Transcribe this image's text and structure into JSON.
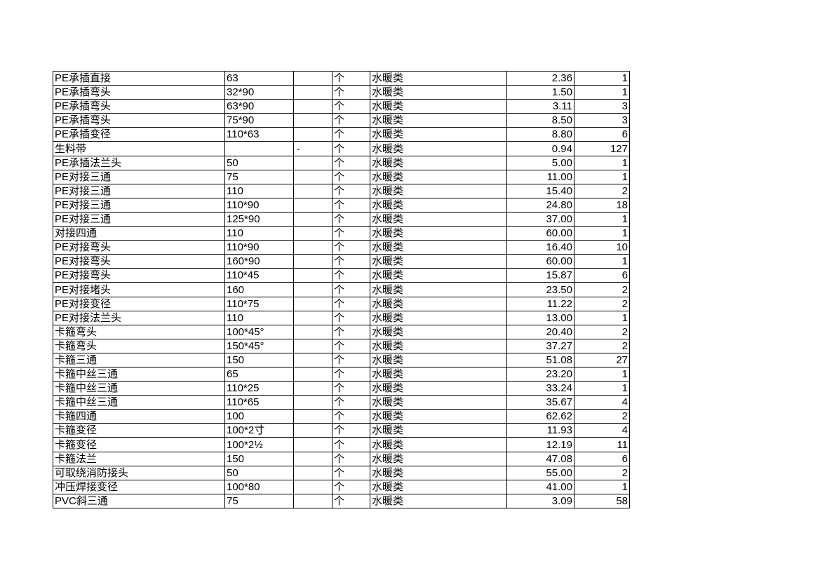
{
  "rows": [
    [
      "PE承插直接",
      "63",
      "",
      "个",
      "水暖类",
      "2.36",
      "1"
    ],
    [
      "PE承插弯头",
      "32*90",
      "",
      "个",
      "水暖类",
      "1.50",
      "1"
    ],
    [
      "PE承插弯头",
      "63*90",
      "",
      "个",
      "水暖类",
      "3.11",
      "3"
    ],
    [
      "PE承插弯头",
      "75*90",
      "",
      "个",
      "水暖类",
      "8.50",
      "3"
    ],
    [
      "PE承插变径",
      "110*63",
      "",
      "个",
      "水暖类",
      "8.80",
      "6"
    ],
    [
      "生料带",
      "",
      "-",
      "个",
      "水暖类",
      "0.94",
      "127"
    ],
    [
      "PE承插法兰头",
      "50",
      "",
      "个",
      "水暖类",
      "5.00",
      "1"
    ],
    [
      "PE对接三通",
      "75",
      "",
      "个",
      "水暖类",
      "11.00",
      "1"
    ],
    [
      "PE对接三通",
      "110",
      "",
      "个",
      "水暖类",
      "15.40",
      "2"
    ],
    [
      "PE对接三通",
      "110*90",
      "",
      "个",
      "水暖类",
      "24.80",
      "18"
    ],
    [
      "PE对接三通",
      "125*90",
      "",
      "个",
      "水暖类",
      "37.00",
      "1"
    ],
    [
      "对接四通",
      "110",
      "",
      "个",
      "水暖类",
      "60.00",
      "1"
    ],
    [
      "PE对接弯头",
      "110*90",
      "",
      "个",
      "水暖类",
      "16.40",
      "10"
    ],
    [
      "PE对接弯头",
      "160*90",
      "",
      "个",
      "水暖类",
      "60.00",
      "1"
    ],
    [
      "PE对接弯头",
      "110*45",
      "",
      "个",
      "水暖类",
      "15.87",
      "6"
    ],
    [
      "PE对接堵头",
      "160",
      "",
      "个",
      "水暖类",
      "23.50",
      "2"
    ],
    [
      "PE对接变径",
      "110*75",
      "",
      "个",
      "水暖类",
      "11.22",
      "2"
    ],
    [
      "PE对接法兰头",
      "110",
      "",
      "个",
      "水暖类",
      "13.00",
      "1"
    ],
    [
      "卡箍弯头",
      "100*45°",
      "",
      "个",
      "水暖类",
      "20.40",
      "2"
    ],
    [
      "卡箍弯头",
      "150*45°",
      "",
      "个",
      "水暖类",
      "37.27",
      "2"
    ],
    [
      "卡箍三通",
      "150",
      "",
      "个",
      "水暖类",
      "51.08",
      "27"
    ],
    [
      "卡箍中丝三通",
      "65",
      "",
      "个",
      "水暖类",
      "23.20",
      "1"
    ],
    [
      "卡箍中丝三通",
      "110*25",
      "",
      "个",
      "水暖类",
      "33.24",
      "1"
    ],
    [
      "卡箍中丝三通",
      "110*65",
      "",
      "个",
      "水暖类",
      "35.67",
      "4"
    ],
    [
      "卡箍四通",
      "100",
      "",
      "个",
      "水暖类",
      "62.62",
      "2"
    ],
    [
      "卡箍变径",
      "100*2寸",
      "",
      "个",
      "水暖类",
      "11.93",
      "4"
    ],
    [
      "卡箍变径",
      "100*2½",
      "",
      "个",
      "水暖类",
      "12.19",
      "11"
    ],
    [
      "卡箍法兰",
      "150",
      "",
      "个",
      "水暖类",
      "47.08",
      "6"
    ],
    [
      "可取绕消防接头",
      "50",
      "",
      "个",
      "水暖类",
      "55.00",
      "2"
    ],
    [
      "冲压焊接变径",
      "100*80",
      "",
      "个",
      "水暖类",
      "41.00",
      "1"
    ],
    [
      "PVC斜三通",
      "75",
      "",
      "个",
      "水暖类",
      "3.09",
      "58"
    ]
  ]
}
